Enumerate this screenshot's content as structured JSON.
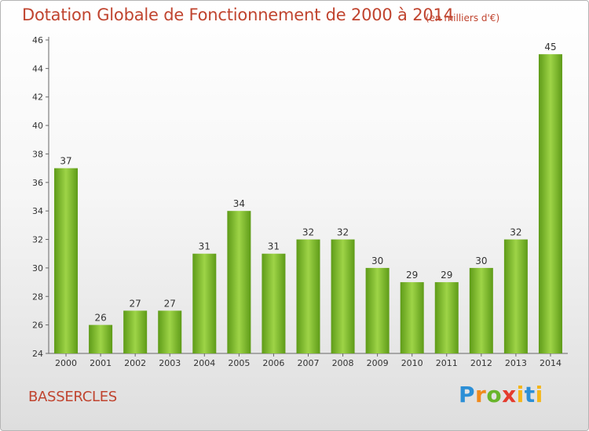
{
  "header": {
    "title": "Dotation Globale de Fonctionnement de 2000 à 2014",
    "subtitle": "(en milliers d'€)"
  },
  "footer": {
    "commune": "BASSERCLES",
    "logo": "Proxiti"
  },
  "colors": {
    "bar_light": "#9ed447",
    "bar_dark": "#5e9b18",
    "title": "#c0442f"
  },
  "chart_data": {
    "type": "bar",
    "title": "Dotation Globale de Fonctionnement de 2000 à 2014",
    "subtitle": "(en milliers d'€)",
    "xlabel": "",
    "ylabel": "",
    "ylim": [
      24,
      46
    ],
    "yticks": [
      24,
      26,
      28,
      30,
      32,
      34,
      36,
      38,
      40,
      42,
      44,
      46
    ],
    "categories": [
      "2000",
      "2001",
      "2002",
      "2003",
      "2004",
      "2005",
      "2006",
      "2007",
      "2008",
      "2009",
      "2010",
      "2011",
      "2012",
      "2013",
      "2014"
    ],
    "values": [
      37,
      26,
      27,
      27,
      31,
      34,
      31,
      32,
      32,
      30,
      29,
      29,
      30,
      32,
      45
    ],
    "grid": false,
    "legend": "none"
  }
}
